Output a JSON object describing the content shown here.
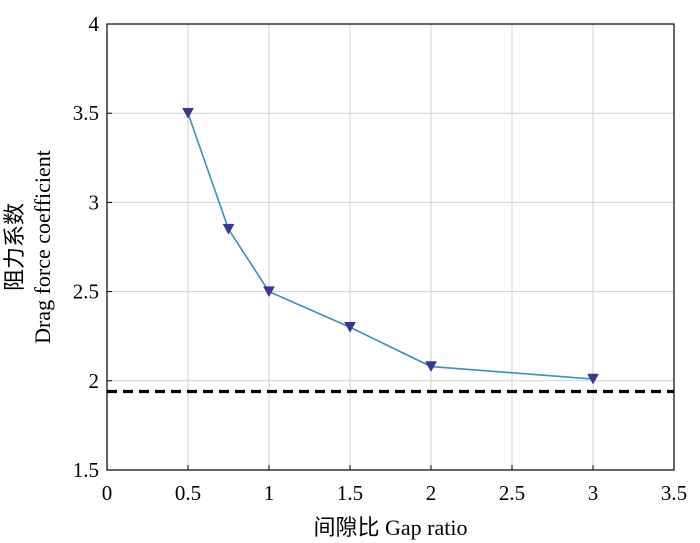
{
  "chart_data": {
    "type": "line",
    "xlabel": "间隙比 Gap ratio",
    "ylabel_line1": "阻力系数",
    "ylabel_line2": "Drag force coefficient",
    "xlim": [
      0,
      3.5
    ],
    "ylim": [
      1.5,
      4
    ],
    "x_ticks": [
      0,
      0.5,
      1,
      1.5,
      2,
      2.5,
      3,
      3.5
    ],
    "x_tick_labels": [
      "0",
      "0.5",
      "1",
      "1.5",
      "2",
      "2.5",
      "3",
      "3.5"
    ],
    "y_ticks": [
      1.5,
      2,
      2.5,
      3,
      3.5,
      4
    ],
    "y_tick_labels": [
      "1.5",
      "2",
      "2.5",
      "3",
      "3.5",
      "4"
    ],
    "grid": true,
    "series": [
      {
        "marker": "triangle-down",
        "line_color": "#3b8fc0",
        "marker_color": "#3a3590",
        "x": [
          0.5,
          0.75,
          1,
          1.5,
          2,
          3
        ],
        "y": [
          3.5,
          2.85,
          2.5,
          2.3,
          2.08,
          2.01
        ]
      }
    ],
    "reference_line": {
      "y": 1.94,
      "style": "dashed",
      "color": "#000000"
    }
  }
}
